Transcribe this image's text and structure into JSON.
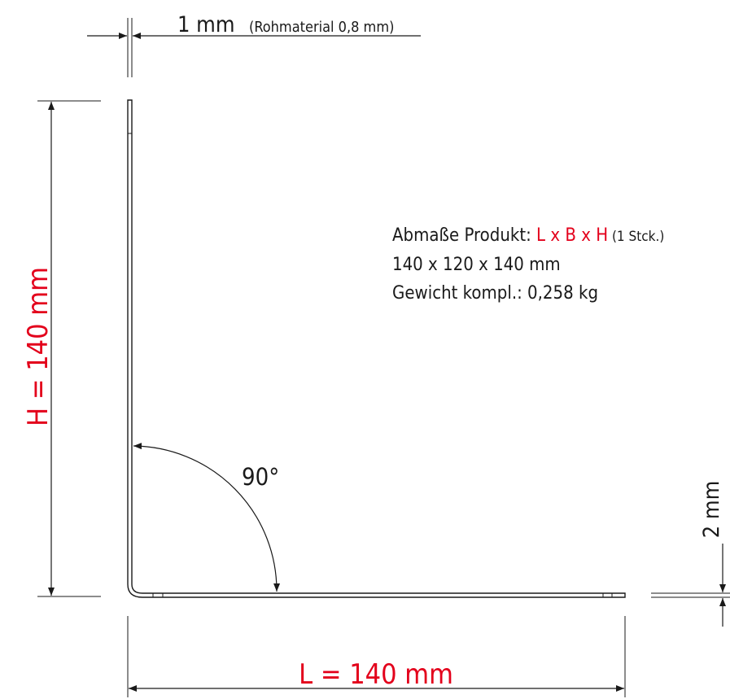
{
  "thickness_dim": {
    "value": "1 mm",
    "note": "(Rohmaterial 0,8 mm)"
  },
  "height_dim": {
    "label": "H = 140 mm"
  },
  "length_dim": {
    "label": "L = 140 mm"
  },
  "side_dim": {
    "label": "2 mm"
  },
  "angle": {
    "label": "90°"
  },
  "info": {
    "line1_prefix": "Abmaße Produkt: ",
    "line1_formula": "L x B x H",
    "line1_suffix": " (1 Stck.)",
    "line2": "140 x 120 x 140 mm",
    "line3": "Gewicht kompl.: 0,258 kg"
  },
  "colors": {
    "accent": "#e3001b",
    "line": "#1a1a1a"
  }
}
